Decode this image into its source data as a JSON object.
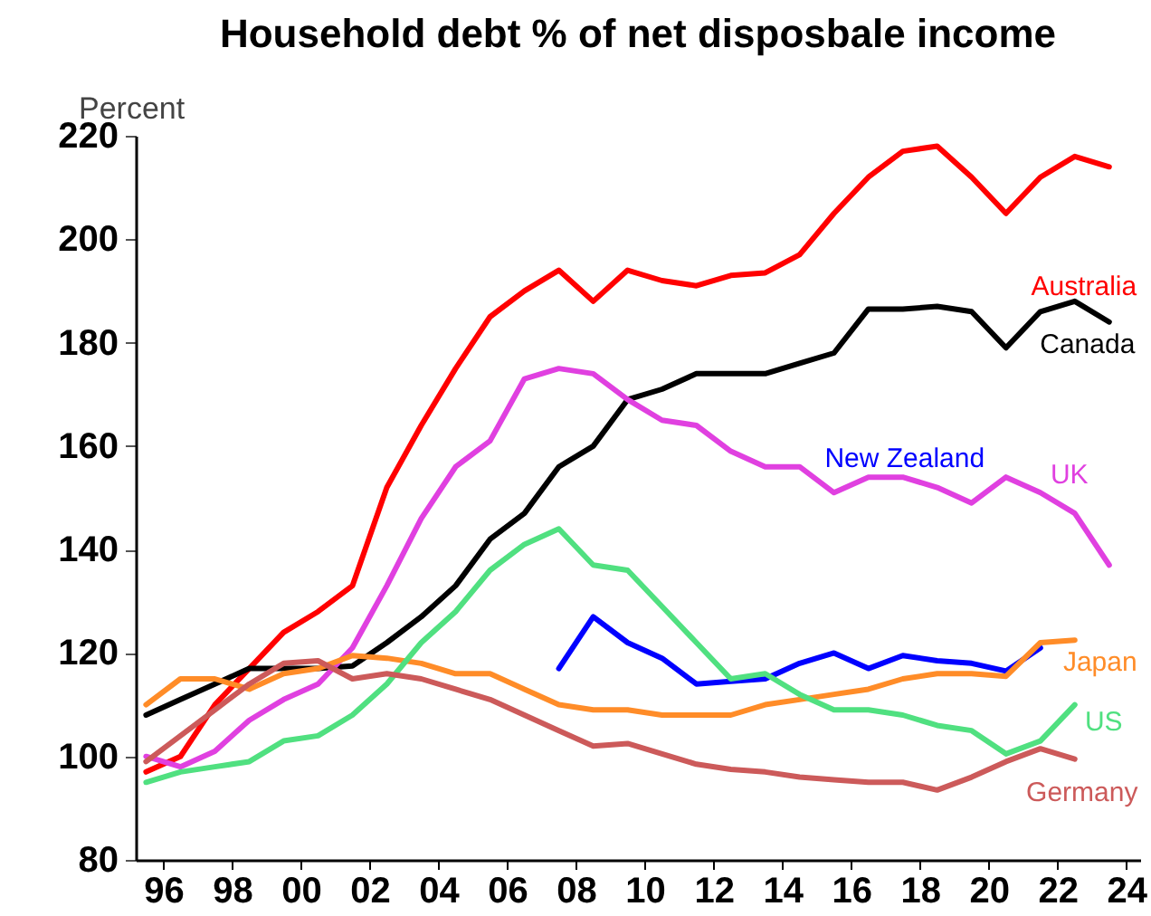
{
  "chart_data": {
    "type": "line",
    "title": "Household debt % of net disposbale income",
    "ylabel": "Percent",
    "xlim": [
      1995.2,
      2024.4
    ],
    "xticks": [
      {
        "value": 1996,
        "label": "96"
      },
      {
        "value": 1998,
        "label": "98"
      },
      {
        "value": 2000,
        "label": "00"
      },
      {
        "value": 2002,
        "label": "02"
      },
      {
        "value": 2004,
        "label": "04"
      },
      {
        "value": 2006,
        "label": "06"
      },
      {
        "value": 2008,
        "label": "08"
      },
      {
        "value": 2010,
        "label": "10"
      },
      {
        "value": 2012,
        "label": "12"
      },
      {
        "value": 2014,
        "label": "14"
      },
      {
        "value": 2016,
        "label": "16"
      },
      {
        "value": 2018,
        "label": "18"
      },
      {
        "value": 2020,
        "label": "20"
      },
      {
        "value": 2022,
        "label": "22"
      },
      {
        "value": 2024,
        "label": "24"
      }
    ],
    "ylim": [
      80,
      220
    ],
    "yticks": [
      80,
      100,
      120,
      140,
      160,
      180,
      200,
      220
    ],
    "grid": false,
    "legend": false,
    "marker": "none",
    "line_style": "solid",
    "series": [
      {
        "name": "Australia",
        "color": "#ff0000",
        "x": [
          1995.5,
          1996.5,
          1997.5,
          1998.5,
          1999.5,
          2000.5,
          2001.5,
          2002.5,
          2003.5,
          2004.5,
          2005.5,
          2006.5,
          2007.5,
          2008.5,
          2009.5,
          2010.5,
          2011.5,
          2012.5,
          2013.5,
          2014.5,
          2015.5,
          2016.5,
          2017.5,
          2018.5,
          2019.5,
          2020.5,
          2021.5,
          2022.5,
          2023.5
        ],
        "values": [
          97,
          100,
          110,
          117,
          124,
          128,
          133,
          152,
          164,
          175,
          185,
          190,
          194,
          188,
          194,
          192,
          191,
          193,
          193.5,
          197,
          205,
          212,
          217,
          218,
          212,
          205,
          212,
          216,
          214
        ]
      },
      {
        "name": "Canada",
        "color": "#000000",
        "x": [
          1995.5,
          1996.5,
          1997.5,
          1998.5,
          1999.5,
          2000.5,
          2001.5,
          2002.5,
          2003.5,
          2004.5,
          2005.5,
          2006.5,
          2007.5,
          2008.5,
          2009.5,
          2010.5,
          2011.5,
          2012.5,
          2013.5,
          2014.5,
          2015.5,
          2016.5,
          2017.5,
          2018.5,
          2019.5,
          2020.5,
          2021.5,
          2022.5,
          2023.5
        ],
        "values": [
          108,
          111,
          114,
          117,
          117,
          117,
          117.5,
          122,
          127,
          133,
          142,
          147,
          156,
          160,
          169,
          171,
          174,
          174,
          174,
          176,
          178,
          186.5,
          186.5,
          187,
          186,
          179,
          186,
          188,
          184
        ]
      },
      {
        "name": "UK",
        "color": "#e040e0",
        "x": [
          1995.5,
          1996.5,
          1997.5,
          1998.5,
          1999.5,
          2000.5,
          2001.5,
          2002.5,
          2003.5,
          2004.5,
          2005.5,
          2006.5,
          2007.5,
          2008.5,
          2009.5,
          2010.5,
          2011.5,
          2012.5,
          2013.5,
          2014.5,
          2015.5,
          2016.5,
          2017.5,
          2018.5,
          2019.5,
          2020.5,
          2021.5,
          2022.5,
          2023.5
        ],
        "values": [
          100,
          98,
          101,
          107,
          111,
          114,
          121,
          133,
          146,
          156,
          161,
          173,
          175,
          174,
          169,
          165,
          164,
          159,
          156,
          156,
          151,
          154,
          154,
          152,
          149,
          154,
          151,
          147,
          137
        ]
      },
      {
        "name": "New Zealand",
        "color": "#0000ff",
        "x": [
          2007.5,
          2008.5,
          2009.5,
          2010.5,
          2011.5,
          2012.5,
          2013.5,
          2014.5,
          2015.5,
          2016.5,
          2017.5,
          2018.5,
          2019.5,
          2020.5,
          2021.5
        ],
        "values": [
          117,
          127,
          122,
          119,
          114,
          114.5,
          115,
          118,
          120,
          117,
          119.5,
          118.5,
          118,
          116.5,
          121
        ]
      },
      {
        "name": "Japan",
        "color": "#ff8c28",
        "x": [
          1995.5,
          1996.5,
          1997.5,
          1998.5,
          1999.5,
          2000.5,
          2001.5,
          2002.5,
          2003.5,
          2004.5,
          2005.5,
          2006.5,
          2007.5,
          2008.5,
          2009.5,
          2010.5,
          2011.5,
          2012.5,
          2013.5,
          2014.5,
          2015.5,
          2016.5,
          2017.5,
          2018.5,
          2019.5,
          2020.5,
          2021.5,
          2022.5
        ],
        "values": [
          110,
          115,
          115,
          113,
          116,
          117,
          119.5,
          119,
          118,
          116,
          116,
          113,
          110,
          109,
          109,
          108,
          108,
          108,
          110,
          111,
          112,
          113,
          115,
          116,
          116,
          115.5,
          122,
          122.5
        ]
      },
      {
        "name": "US",
        "color": "#50e080",
        "x": [
          1995.5,
          1996.5,
          1997.5,
          1998.5,
          1999.5,
          2000.5,
          2001.5,
          2002.5,
          2003.5,
          2004.5,
          2005.5,
          2006.5,
          2007.5,
          2008.5,
          2009.5,
          2010.5,
          2011.5,
          2012.5,
          2013.5,
          2014.5,
          2015.5,
          2016.5,
          2017.5,
          2018.5,
          2019.5,
          2020.5,
          2021.5,
          2022.5
        ],
        "values": [
          95,
          97,
          98,
          99,
          103,
          104,
          108,
          114,
          122,
          128,
          136,
          141,
          144,
          137,
          136,
          129,
          122,
          115,
          116,
          112,
          109,
          109,
          108,
          106,
          105,
          100.5,
          103,
          110
        ]
      },
      {
        "name": "Germany",
        "color": "#cc5a5a",
        "x": [
          1995.5,
          1996.5,
          1997.5,
          1998.5,
          1999.5,
          2000.5,
          2001.5,
          2002.5,
          2003.5,
          2004.5,
          2005.5,
          2006.5,
          2007.5,
          2008.5,
          2009.5,
          2010.5,
          2011.5,
          2012.5,
          2013.5,
          2014.5,
          2015.5,
          2016.5,
          2017.5,
          2018.5,
          2019.5,
          2020.5,
          2021.5,
          2022.5
        ],
        "values": [
          99,
          104,
          109,
          114,
          118,
          118.5,
          115,
          116,
          115,
          113,
          111,
          108,
          105,
          102,
          102.5,
          100.5,
          98.5,
          97.5,
          97,
          96,
          95.5,
          95,
          95,
          93.5,
          96,
          99,
          101.5,
          99.5
        ]
      }
    ]
  }
}
